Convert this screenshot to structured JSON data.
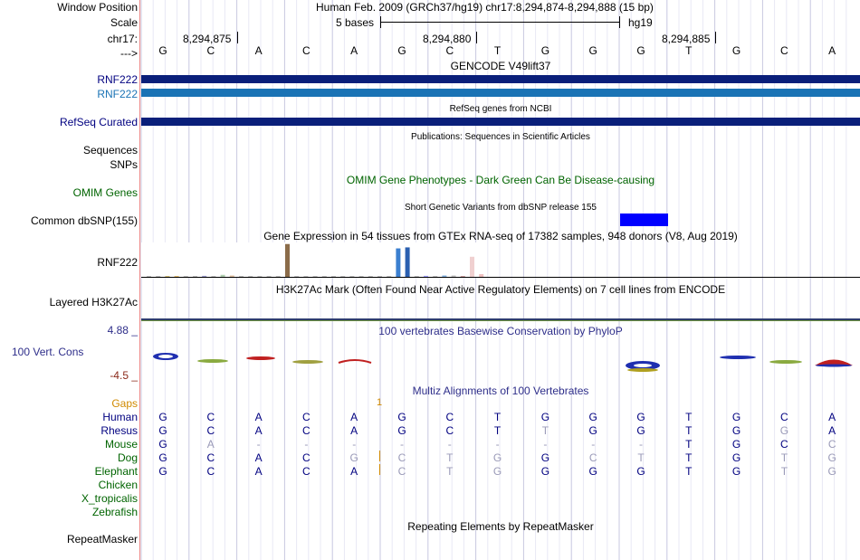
{
  "header": {
    "window_label": "Window Position",
    "window_value": "Human Feb. 2009 (GRCh37/hg19)   chr17:8,294,874-8,294,888 (15 bp)",
    "scale_label": "Scale",
    "scale_value": "5 bases",
    "assembly": "hg19",
    "chrom_label": "chr17:",
    "pos1": "8,294,875",
    "pos2": "8,294,880",
    "pos3": "8,294,885",
    "strand_label": "--->"
  },
  "bases": [
    "G",
    "C",
    "A",
    "C",
    "A",
    "G",
    "C",
    "T",
    "G",
    "G",
    "G",
    "T",
    "G",
    "C",
    "A"
  ],
  "tracks": {
    "gencode_title": "GENCODE V49lift37",
    "gencode_gene1": "RNF222",
    "gencode_gene2": "RNF222",
    "gencode_color1": "#0a1f7a",
    "gencode_color2": "#1a73b5",
    "refseq_title": "RefSeq genes from NCBI",
    "refseq_label": "RefSeq Curated",
    "pubs_title": "Publications: Sequences in Scientific Articles",
    "sequences_label": "Sequences",
    "snps_label": "SNPs",
    "omim_title": "OMIM Gene Phenotypes - Dark Green Can Be Disease-causing",
    "omim_label": "OMIM Genes",
    "dbsnp_title": "Short Genetic Variants from dbSNP release 155",
    "dbsnp_label": "Common dbSNP(155)",
    "gtex_title": "Gene Expression in 54 tissues from GTEx RNA-seq of 17382 samples, 948 donors (V8, Aug 2019)",
    "gtex_label": "RNF222",
    "h3k27_title": "H3K27Ac Mark (Often Found Near Active Regulatory Elements) on 7 cell lines from ENCODE",
    "h3k27_label": "Layered H3K27Ac",
    "cons_title": "100 vertebrates Basewise Conservation by PhyloP",
    "cons_label": "100 Vert. Cons",
    "cons_max": "4.88 _",
    "cons_min": "-4.5 _",
    "multiz_title": "Multiz Alignments of 100 Vertebrates",
    "gaps_label": "Gaps",
    "gap_marker": "1",
    "repeat_title": "Repeating Elements by RepeatMasker",
    "repeat_label": "RepeatMasker"
  },
  "species": [
    {
      "name": "Human",
      "seq": [
        "G",
        "C",
        "A",
        "C",
        "A",
        "G",
        "C",
        "T",
        "G",
        "G",
        "G",
        "T",
        "G",
        "C",
        "A"
      ],
      "faded": []
    },
    {
      "name": "Rhesus",
      "seq": [
        "G",
        "C",
        "A",
        "C",
        "A",
        "G",
        "C",
        "T",
        "T",
        "G",
        "G",
        "T",
        "G",
        "G",
        "A"
      ],
      "faded": [
        8,
        13
      ]
    },
    {
      "name": "Mouse",
      "seq": [
        "G",
        "A",
        "-",
        "-",
        "-",
        "-",
        "-",
        "-",
        "-",
        "-",
        "-",
        "T",
        "G",
        "C",
        "C"
      ],
      "faded": [
        1,
        2,
        3,
        4,
        5,
        6,
        7,
        8,
        9,
        10,
        14
      ]
    },
    {
      "name": "Dog",
      "seq": [
        "G",
        "C",
        "A",
        "C",
        "G",
        "C",
        "T",
        "G",
        "G",
        "C",
        "T",
        "T",
        "G",
        "T",
        "G"
      ],
      "faded": [
        4,
        5,
        6,
        7,
        9,
        10,
        13,
        14
      ]
    },
    {
      "name": "Elephant",
      "seq": [
        "G",
        "C",
        "A",
        "C",
        "A",
        "C",
        "T",
        "G",
        "G",
        "G",
        "G",
        "T",
        "G",
        "T",
        "G"
      ],
      "faded": [
        5,
        6,
        7,
        13,
        14
      ]
    },
    {
      "name": "Chicken",
      "seq": [],
      "faded": []
    },
    {
      "name": "X_tropicalis",
      "seq": [],
      "faded": []
    },
    {
      "name": "Zebrafish",
      "seq": [],
      "faded": []
    }
  ],
  "gtex_values": [
    0.02,
    0,
    0.02,
    0.02,
    0,
    0,
    0.03,
    0.02,
    0.06,
    0.04,
    0,
    0.02,
    0,
    0,
    0,
    0.98,
    0,
    0,
    0.02,
    0,
    0,
    0,
    0,
    0,
    0,
    0,
    0,
    0.85,
    0.88,
    0,
    0.03,
    0,
    0.04,
    0.04,
    0.02,
    0.6,
    0.08
  ],
  "gtex_colors": [
    "#c0c0c0",
    "#c0c0c0",
    "#d8c37a",
    "#e8c070",
    "#c0c0c0",
    "#c0c0c0",
    "#9999cc",
    "#c0c0c0",
    "#b0d0b0",
    "#e0c0a0",
    "#c0c0c0",
    "#c0c0c0",
    "#c0c0c0",
    "#c0c0c0",
    "#c0c0c0",
    "#8b6c4a",
    "#c0c0c0",
    "#c0c0c0",
    "#c0c0c0",
    "#c0c0c0",
    "#c0c0c0",
    "#c0c0c0",
    "#c0c0c0",
    "#c0c0c0",
    "#c0c0c0",
    "#c0c0c0",
    "#c0c0c0",
    "#3b7fd0",
    "#2a5fb0",
    "#c0c0c0",
    "#a0a0ff",
    "#c0c0c0",
    "#80b0e0",
    "#c0c0c0",
    "#d0a0a0",
    "#f0d0d0",
    "#f0c0c0"
  ]
}
